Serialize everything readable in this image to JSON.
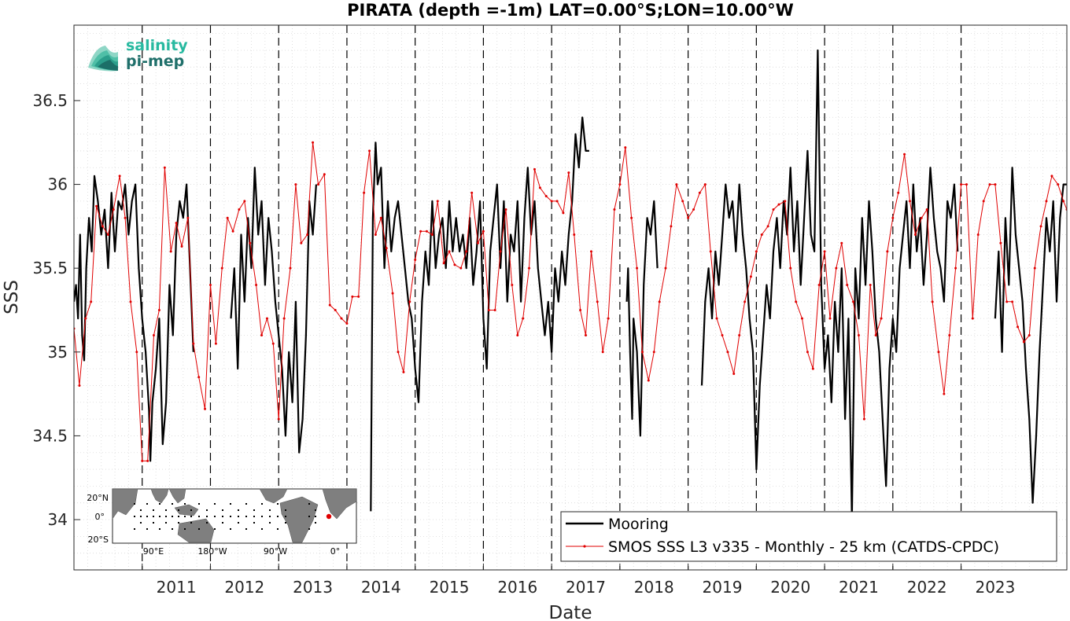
{
  "chart_data": {
    "type": "line",
    "title": "PIRATA (depth =-1m) LAT=0.00°S;LON=10.00°W",
    "xlabel": "Date",
    "ylabel": "SSS",
    "xlim": [
      2010.0,
      2024.55
    ],
    "ylim": [
      33.7,
      36.95
    ],
    "x_tick_labels": [
      "2011",
      "2012",
      "2013",
      "2014",
      "2015",
      "2016",
      "2017",
      "2018",
      "2019",
      "2020",
      "2021",
      "2022",
      "2023"
    ],
    "x_ticks": [
      2011,
      2012,
      2013,
      2014,
      2015,
      2016,
      2017,
      2018,
      2019,
      2020,
      2021,
      2022,
      2023
    ],
    "y_tick_labels": [
      "34",
      "34.5",
      "35",
      "35.5",
      "36",
      "36.5"
    ],
    "y_ticks": [
      34,
      34.5,
      35,
      35.5,
      36,
      36.5
    ],
    "grid": "minor dotted",
    "year_separators": "dashed vertical at each year",
    "legend_position": "bottom-right",
    "series": [
      {
        "name": "Mooring",
        "color": "#000000",
        "segments": [
          {
            "x": [
              2010.0,
              2010.03,
              2010.06,
              2010.09,
              2010.12,
              2010.15,
              2010.18,
              2010.22,
              2010.26,
              2010.3,
              2010.35,
              2010.4,
              2010.45,
              2010.5,
              2010.55,
              2010.6,
              2010.65,
              2010.7,
              2010.75,
              2010.8,
              2010.85,
              2010.9,
              2010.95,
              2011.0,
              2011.05,
              2011.1,
              2011.12,
              2011.15,
              2011.2,
              2011.25,
              2011.3,
              2011.35,
              2011.4,
              2011.45,
              2011.5,
              2011.55,
              2011.6,
              2011.65,
              2011.7,
              2011.75
            ],
            "y": [
              35.3,
              35.4,
              35.2,
              35.7,
              35.1,
              34.95,
              35.5,
              35.8,
              35.6,
              36.05,
              35.9,
              35.7,
              35.85,
              35.5,
              35.95,
              35.6,
              35.9,
              35.85,
              36.0,
              35.7,
              35.9,
              36.0,
              35.5,
              35.2,
              35.0,
              34.65,
              34.35,
              34.7,
              34.9,
              35.2,
              34.45,
              34.7,
              35.4,
              35.1,
              35.7,
              35.9,
              35.8,
              36.0,
              35.5,
              35.0
            ]
          },
          {
            "x": [
              2012.3,
              2012.35,
              2012.4,
              2012.45,
              2012.5,
              2012.55,
              2012.6,
              2012.65,
              2012.7,
              2012.75,
              2012.8,
              2012.85,
              2012.9,
              2012.95,
              2013.0,
              2013.05,
              2013.1,
              2013.15,
              2013.2,
              2013.25,
              2013.3,
              2013.35,
              2013.4,
              2013.45,
              2013.5,
              2013.55
            ],
            "y": [
              35.2,
              35.5,
              34.9,
              35.7,
              35.3,
              35.8,
              35.5,
              36.1,
              35.7,
              35.9,
              35.4,
              35.8,
              35.6,
              35.3,
              35.1,
              34.9,
              34.5,
              35.0,
              34.7,
              35.3,
              34.4,
              34.6,
              35.1,
              35.9,
              35.7,
              36.0
            ]
          },
          {
            "x": [
              2014.35,
              2014.38,
              2014.42,
              2014.45,
              2014.5,
              2014.55,
              2014.6,
              2014.65,
              2014.7,
              2014.75,
              2014.8,
              2014.85,
              2014.9,
              2014.95,
              2015.0,
              2015.05,
              2015.1,
              2015.15,
              2015.2,
              2015.25,
              2015.3,
              2015.35,
              2015.4,
              2015.45,
              2015.5,
              2015.55,
              2015.6,
              2015.65,
              2015.7,
              2015.75,
              2015.8,
              2015.85,
              2015.9,
              2015.95,
              2016.0,
              2016.05,
              2016.1,
              2016.15,
              2016.2,
              2016.25,
              2016.3,
              2016.35,
              2016.4,
              2016.45,
              2016.5,
              2016.55,
              2016.6,
              2016.65,
              2016.7,
              2016.75,
              2016.8,
              2016.85,
              2016.9,
              2016.95,
              2017.0,
              2017.05,
              2017.1,
              2017.15,
              2017.2,
              2017.25,
              2017.3,
              2017.35,
              2017.4,
              2017.45,
              2017.5,
              2017.55
            ],
            "y": [
              34.05,
              35.8,
              36.25,
              36.0,
              36.1,
              35.5,
              35.9,
              35.6,
              35.8,
              35.9,
              35.7,
              35.5,
              35.3,
              35.2,
              34.9,
              34.7,
              35.3,
              35.6,
              35.4,
              35.9,
              35.5,
              35.7,
              35.8,
              35.5,
              35.9,
              35.6,
              35.8,
              35.6,
              35.7,
              35.5,
              35.8,
              35.4,
              35.6,
              35.9,
              35.2,
              34.9,
              35.6,
              35.8,
              36.0,
              35.5,
              35.9,
              35.3,
              35.7,
              35.6,
              35.9,
              35.3,
              35.8,
              36.1,
              35.7,
              35.9,
              35.5,
              35.3,
              35.1,
              35.3,
              35.0,
              35.5,
              35.3,
              35.6,
              35.4,
              35.7,
              35.9,
              36.3,
              36.1,
              36.4,
              36.2,
              36.2
            ]
          },
          {
            "x": [
              2018.1,
              2018.12,
              2018.15,
              2018.18,
              2018.2,
              2018.25,
              2018.3,
              2018.35,
              2018.4,
              2018.45,
              2018.5,
              2018.55
            ],
            "y": [
              35.3,
              35.5,
              35.0,
              34.6,
              35.2,
              35.0,
              34.5,
              35.4,
              35.8,
              35.7,
              35.9,
              35.5
            ]
          },
          {
            "x": [
              2019.2,
              2019.25,
              2019.3,
              2019.35,
              2019.4,
              2019.45,
              2019.5,
              2019.55,
              2019.6,
              2019.65,
              2019.7,
              2019.75,
              2019.8,
              2019.85,
              2019.9,
              2019.95,
              2020.0,
              2020.05,
              2020.1,
              2020.15,
              2020.2,
              2020.25,
              2020.3,
              2020.35,
              2020.4,
              2020.45,
              2020.5,
              2020.55,
              2020.6,
              2020.65,
              2020.7,
              2020.75,
              2020.8,
              2020.85,
              2020.9,
              2020.95,
              2021.0,
              2021.05,
              2021.1,
              2021.15,
              2021.2,
              2021.25,
              2021.3,
              2021.35,
              2021.4,
              2021.45,
              2021.5,
              2021.55,
              2021.6,
              2021.65,
              2021.7,
              2021.75,
              2021.8,
              2021.85,
              2021.9,
              2021.95,
              2022.0,
              2022.05,
              2022.1,
              2022.15,
              2022.2,
              2022.25,
              2022.3,
              2022.35,
              2022.4,
              2022.45,
              2022.5,
              2022.55,
              2022.6,
              2022.65,
              2022.7,
              2022.75,
              2022.8,
              2022.85,
              2022.9,
              2022.95
            ],
            "y": [
              34.8,
              35.3,
              35.5,
              35.2,
              35.6,
              35.4,
              35.7,
              36.0,
              35.8,
              35.9,
              35.6,
              36.0,
              35.7,
              35.5,
              35.2,
              35.0,
              34.3,
              34.8,
              35.1,
              35.4,
              35.2,
              35.6,
              35.8,
              35.5,
              35.9,
              35.7,
              36.1,
              35.6,
              35.9,
              35.4,
              35.8,
              36.2,
              35.7,
              35.6,
              36.8,
              35.4,
              34.9,
              35.1,
              34.7,
              35.3,
              35.0,
              35.5,
              34.6,
              35.2,
              34.0,
              35.5,
              35.2,
              35.8,
              35.4,
              35.9,
              35.6,
              35.2,
              35.0,
              34.6,
              34.2,
              34.9,
              35.2,
              35.0,
              35.5,
              35.7,
              35.9,
              35.5,
              36.0,
              35.6,
              35.8,
              35.4,
              35.7,
              36.1,
              35.8,
              35.6,
              35.5,
              35.3,
              35.9,
              35.8,
              36.0,
              35.6
            ]
          },
          {
            "x": [
              2023.5,
              2023.55,
              2023.6,
              2023.65,
              2023.7,
              2023.75,
              2023.8,
              2023.85,
              2023.9,
              2023.95,
              2024.0,
              2024.05,
              2024.1,
              2024.15,
              2024.2,
              2024.25,
              2024.3,
              2024.35,
              2024.4,
              2024.45,
              2024.5,
              2024.55
            ],
            "y": [
              35.2,
              35.6,
              35.0,
              35.8,
              35.4,
              36.1,
              35.7,
              35.5,
              35.3,
              34.9,
              34.6,
              34.1,
              34.5,
              35.0,
              35.4,
              35.8,
              35.6,
              35.9,
              35.3,
              35.8,
              36.0,
              36.0
            ]
          }
        ]
      },
      {
        "name": "SMOS SSS L3 v335 - Monthly - 25 km (CATDS-CPDC)",
        "color": "#e00000",
        "x": [
          2010.0,
          2010.08,
          2010.17,
          2010.25,
          2010.33,
          2010.42,
          2010.5,
          2010.58,
          2010.67,
          2010.75,
          2010.83,
          2010.92,
          2011.0,
          2011.08,
          2011.17,
          2011.25,
          2011.33,
          2011.42,
          2011.5,
          2011.58,
          2011.67,
          2011.75,
          2011.83,
          2011.92,
          2012.0,
          2012.08,
          2012.17,
          2012.25,
          2012.33,
          2012.42,
          2012.5,
          2012.58,
          2012.67,
          2012.75,
          2012.83,
          2012.92,
          2013.0,
          2013.08,
          2013.17,
          2013.25,
          2013.33,
          2013.42,
          2013.5,
          2013.58,
          2013.67,
          2013.75,
          2013.83,
          2013.92,
          2014.0,
          2014.08,
          2014.17,
          2014.25,
          2014.33,
          2014.42,
          2014.5,
          2014.58,
          2014.67,
          2014.75,
          2014.83,
          2014.92,
          2015.0,
          2015.08,
          2015.17,
          2015.25,
          2015.33,
          2015.42,
          2015.5,
          2015.58,
          2015.67,
          2015.75,
          2015.83,
          2015.92,
          2016.0,
          2016.08,
          2016.17,
          2016.25,
          2016.33,
          2016.42,
          2016.5,
          2016.58,
          2016.67,
          2016.75,
          2016.83,
          2016.92,
          2017.0,
          2017.08,
          2017.17,
          2017.25,
          2017.33,
          2017.42,
          2017.5,
          2017.58,
          2017.67,
          2017.75,
          2017.83,
          2017.92,
          2018.0,
          2018.08,
          2018.17,
          2018.25,
          2018.33,
          2018.42,
          2018.5,
          2018.58,
          2018.67,
          2018.75,
          2018.83,
          2018.92,
          2019.0,
          2019.08,
          2019.17,
          2019.25,
          2019.33,
          2019.42,
          2019.5,
          2019.58,
          2019.67,
          2019.75,
          2019.83,
          2019.92,
          2020.0,
          2020.08,
          2020.17,
          2020.25,
          2020.33,
          2020.42,
          2020.5,
          2020.58,
          2020.67,
          2020.75,
          2020.83,
          2020.92,
          2021.0,
          2021.08,
          2021.17,
          2021.25,
          2021.33,
          2021.42,
          2021.5,
          2021.58,
          2021.67,
          2021.75,
          2021.83,
          2021.92,
          2022.0,
          2022.08,
          2022.17,
          2022.25,
          2022.33,
          2022.42,
          2022.5,
          2022.58,
          2022.67,
          2022.75,
          2022.83,
          2022.92,
          2023.0,
          2023.08,
          2023.17,
          2023.25,
          2023.33,
          2023.42,
          2023.5,
          2023.58,
          2023.67,
          2023.75,
          2023.83,
          2023.92,
          2024.0,
          2024.08,
          2024.17,
          2024.25,
          2024.33,
          2024.42,
          2024.5,
          2024.55
        ],
        "y": [
          35.14,
          34.8,
          35.2,
          35.3,
          35.87,
          35.75,
          35.7,
          35.85,
          36.05,
          35.8,
          35.3,
          35.0,
          34.35,
          34.35,
          35.1,
          35.25,
          36.1,
          35.6,
          35.77,
          35.63,
          35.8,
          35.05,
          34.85,
          34.66,
          35.4,
          35.05,
          35.5,
          35.8,
          35.72,
          35.85,
          35.9,
          35.65,
          35.4,
          35.1,
          35.2,
          35.05,
          34.6,
          35.2,
          35.5,
          36.0,
          35.65,
          35.7,
          36.25,
          36.0,
          36.06,
          35.28,
          35.25,
          35.2,
          35.17,
          35.33,
          35.33,
          35.95,
          36.2,
          35.7,
          35.8,
          35.62,
          35.35,
          35.0,
          34.88,
          35.3,
          35.55,
          35.72,
          35.72,
          35.7,
          35.9,
          35.53,
          35.6,
          35.52,
          35.5,
          35.6,
          35.95,
          35.65,
          35.72,
          35.25,
          35.25,
          35.6,
          35.85,
          35.4,
          35.1,
          35.2,
          35.5,
          36.09,
          35.98,
          35.93,
          35.9,
          35.9,
          35.83,
          36.07,
          35.7,
          35.25,
          35.1,
          35.6,
          35.3,
          35.0,
          35.2,
          35.85,
          36.0,
          36.22,
          35.8,
          35.5,
          35.0,
          34.83,
          35.0,
          35.3,
          35.5,
          35.75,
          36.0,
          35.9,
          35.8,
          35.85,
          35.95,
          36.0,
          35.6,
          35.2,
          35.1,
          35.0,
          34.87,
          35.1,
          35.3,
          35.45,
          35.6,
          35.7,
          35.75,
          35.85,
          35.88,
          35.9,
          35.5,
          35.3,
          35.2,
          35.0,
          34.9,
          35.4,
          35.6,
          35.2,
          35.5,
          35.65,
          35.4,
          35.3,
          35.1,
          34.6,
          35.4,
          35.1,
          35.2,
          35.6,
          35.8,
          35.95,
          36.18,
          35.9,
          35.7,
          35.8,
          35.85,
          35.3,
          35.0,
          34.75,
          35.1,
          35.5,
          36.0,
          36.0,
          35.2,
          35.7,
          35.9,
          36.0,
          36.0,
          35.65,
          35.3,
          35.3,
          35.15,
          35.06,
          35.1,
          35.5,
          35.75,
          35.9,
          36.05,
          36.0,
          35.9,
          35.85
        ]
      }
    ]
  },
  "legend": {
    "items": [
      {
        "label": "Mooring",
        "color": "#000000"
      },
      {
        "label": "SMOS SSS L3 v335 - Monthly - 25 km (CATDS-CPDC)",
        "color": "#e00000"
      }
    ]
  },
  "inset_map": {
    "lat_labels": [
      "20°N",
      "0°",
      "20°S"
    ],
    "lon_labels": [
      "90°E",
      "180°W",
      "90°W",
      "0°"
    ],
    "marker_color": "#e00000"
  },
  "logo": {
    "line1": "salinity",
    "line2": "pi-mep"
  }
}
